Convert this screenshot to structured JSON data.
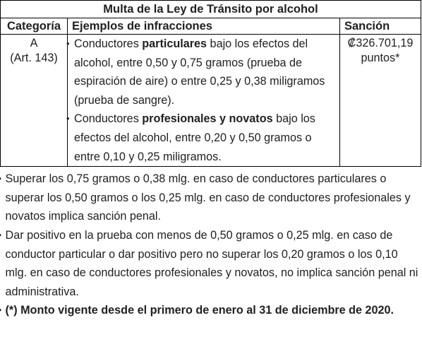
{
  "table": {
    "caption": "Multa de la Ley de Tránsito por alcohol",
    "headers": {
      "category": "Categoría",
      "examples": "Ejemplos de infracciones",
      "sanction": "Sanción"
    },
    "row": {
      "category_code": "A",
      "category_article": "(Art. 143)",
      "examples": [
        {
          "pre": "Conductores ",
          "bold": "particulares",
          "post": " bajo los efectos del alcohol, entre 0,50 y 0,75 gramos (prueba de espiración de aire) o entre 0,25 y 0,38 miligramos (prueba de sangre)."
        },
        {
          "pre": "Conductores ",
          "bold": "profesionales y novatos",
          "post": " bajo los efectos del alcohol, entre 0,20 y 0,50 gramos o entre 0,10 y 0,25 miligramos."
        }
      ],
      "sanction_amount": "₡326.701,19",
      "sanction_unit": "puntos*"
    }
  },
  "notes": [
    "Superar los 0,75 gramos o 0,38 mlg. en caso de conductores particulares o superar los 0,50 gramos o los 0,25 mlg. en caso de conductores profesionales y novatos implica sanción penal.",
    "Dar positivo en la prueba con menos de 0,50 gramos o 0,25 mlg. en caso de conductor particular o dar positivo pero no superar los 0,20 gramos o los 0,10 mlg. en caso de conductores profesionales y novatos, no implica sanción penal ni administrativa."
  ],
  "footnote": "(*) Monto vigente desde el primero de enero al 31 de diciembre de 2020.",
  "bullet_glyph": "•"
}
